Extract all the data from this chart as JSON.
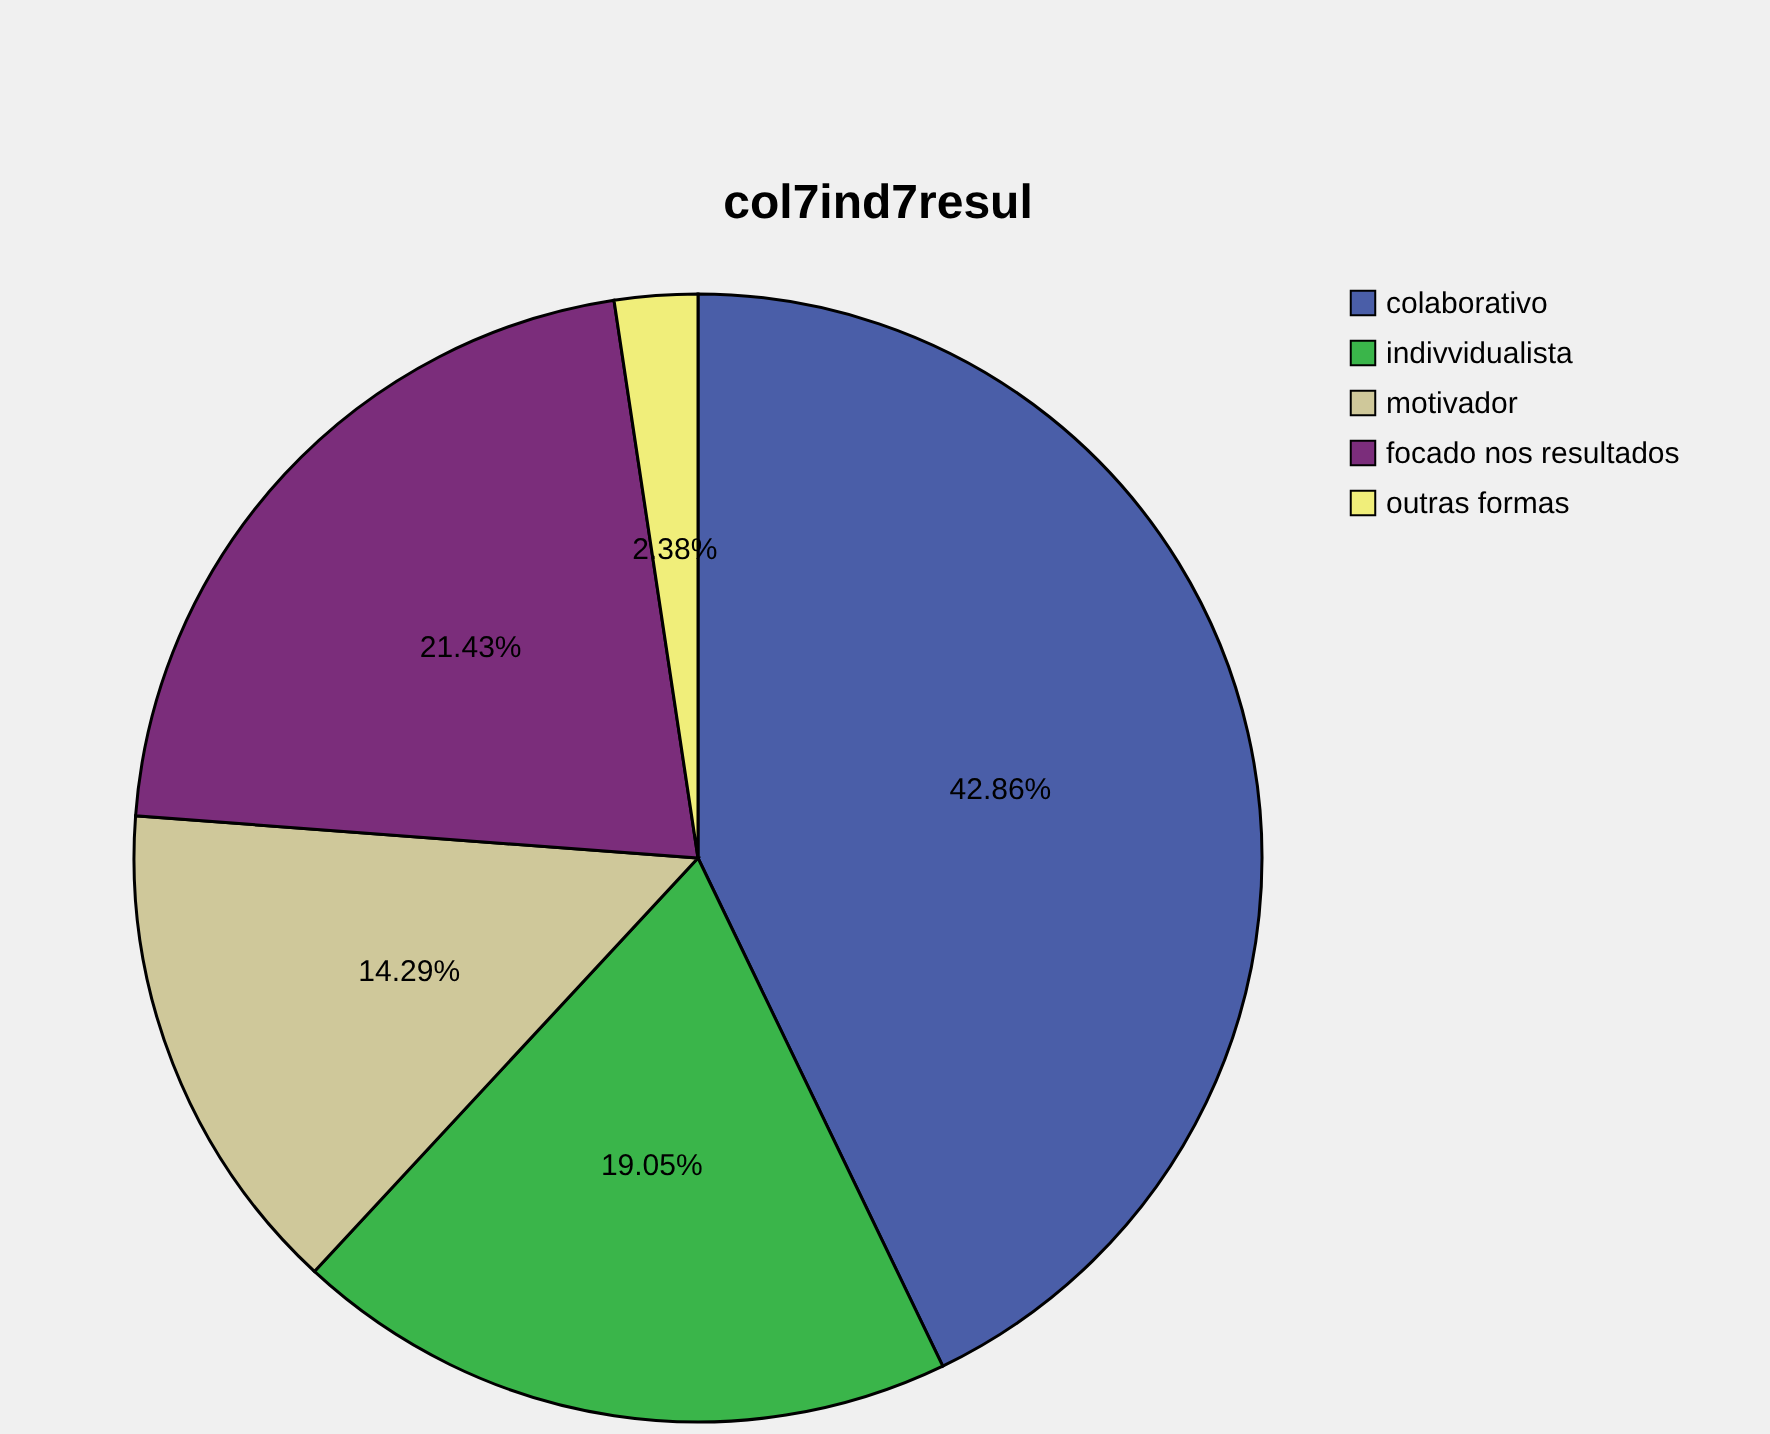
{
  "chart_data": {
    "type": "pie",
    "title": "col7ind7resul",
    "categories": [
      "colaborativo",
      "indivvidualista",
      "motivador",
      "focado nos resultados",
      "outras formas"
    ],
    "values": [
      42.86,
      19.05,
      14.29,
      21.43,
      2.38
    ],
    "colors": [
      "#4a5ea8",
      "#3ab54a",
      "#cfc89a",
      "#7b2d7b",
      "#f0ee7a"
    ],
    "value_labels": [
      "42.86%",
      "19.05%",
      "14.29%",
      "21.43%",
      "2.38%"
    ],
    "legend": "top right"
  }
}
